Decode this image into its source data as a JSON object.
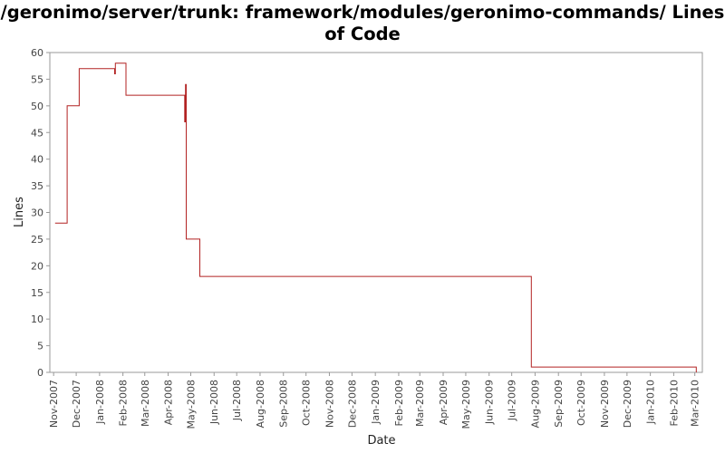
{
  "chart_data": {
    "type": "line",
    "title": "/geronimo/server/trunk: framework/modules/geronimo-commands/ Lines of Code",
    "xlabel": "Date",
    "ylabel": "Lines",
    "ylim": [
      0,
      60
    ],
    "y_ticks": [
      0,
      5,
      10,
      15,
      20,
      25,
      30,
      35,
      40,
      45,
      50,
      55,
      60
    ],
    "xlim": [
      "2007-10-27",
      "2010-03-11"
    ],
    "x_tick_labels": [
      "Nov-2007",
      "Dec-2007",
      "Jan-2008",
      "Feb-2008",
      "Mar-2008",
      "Apr-2008",
      "May-2008",
      "Jun-2008",
      "Jul-2008",
      "Aug-2008",
      "Sep-2008",
      "Oct-2008",
      "Nov-2008",
      "Dec-2008",
      "Jan-2009",
      "Feb-2009",
      "Mar-2009",
      "Apr-2009",
      "May-2009",
      "Jun-2009",
      "Jul-2009",
      "Aug-2009",
      "Sep-2009",
      "Oct-2009",
      "Nov-2009",
      "Dec-2009",
      "Jan-2010",
      "Feb-2010",
      "Mar-2010"
    ],
    "x_tick_dates": [
      "2007-11-01",
      "2007-12-01",
      "2008-01-01",
      "2008-02-01",
      "2008-03-01",
      "2008-04-01",
      "2008-05-01",
      "2008-06-01",
      "2008-07-01",
      "2008-08-01",
      "2008-09-01",
      "2008-10-01",
      "2008-11-01",
      "2008-12-01",
      "2009-01-01",
      "2009-02-01",
      "2009-03-01",
      "2009-04-01",
      "2009-05-01",
      "2009-06-01",
      "2009-07-01",
      "2009-08-01",
      "2009-09-01",
      "2009-10-01",
      "2009-11-01",
      "2009-12-01",
      "2010-01-01",
      "2010-02-01",
      "2010-03-01"
    ],
    "step": true,
    "line_color": "#b22222",
    "series": [
      {
        "points": [
          {
            "x": "2007-11-03",
            "y": 28
          },
          {
            "x": "2007-11-19",
            "y": 50
          },
          {
            "x": "2007-12-05",
            "y": 57
          },
          {
            "x": "2008-01-21",
            "y": 56
          },
          {
            "x": "2008-01-22",
            "y": 58
          },
          {
            "x": "2008-02-05",
            "y": 52
          },
          {
            "x": "2008-04-23",
            "y": 47
          },
          {
            "x": "2008-04-24",
            "y": 54
          },
          {
            "x": "2008-04-25",
            "y": 25
          },
          {
            "x": "2008-05-13",
            "y": 18
          },
          {
            "x": "2009-07-27",
            "y": 1
          },
          {
            "x": "2009-10-22",
            "y": 1
          },
          {
            "x": "2010-03-03",
            "y": 0
          }
        ]
      }
    ],
    "grid": false,
    "legend": "none"
  }
}
